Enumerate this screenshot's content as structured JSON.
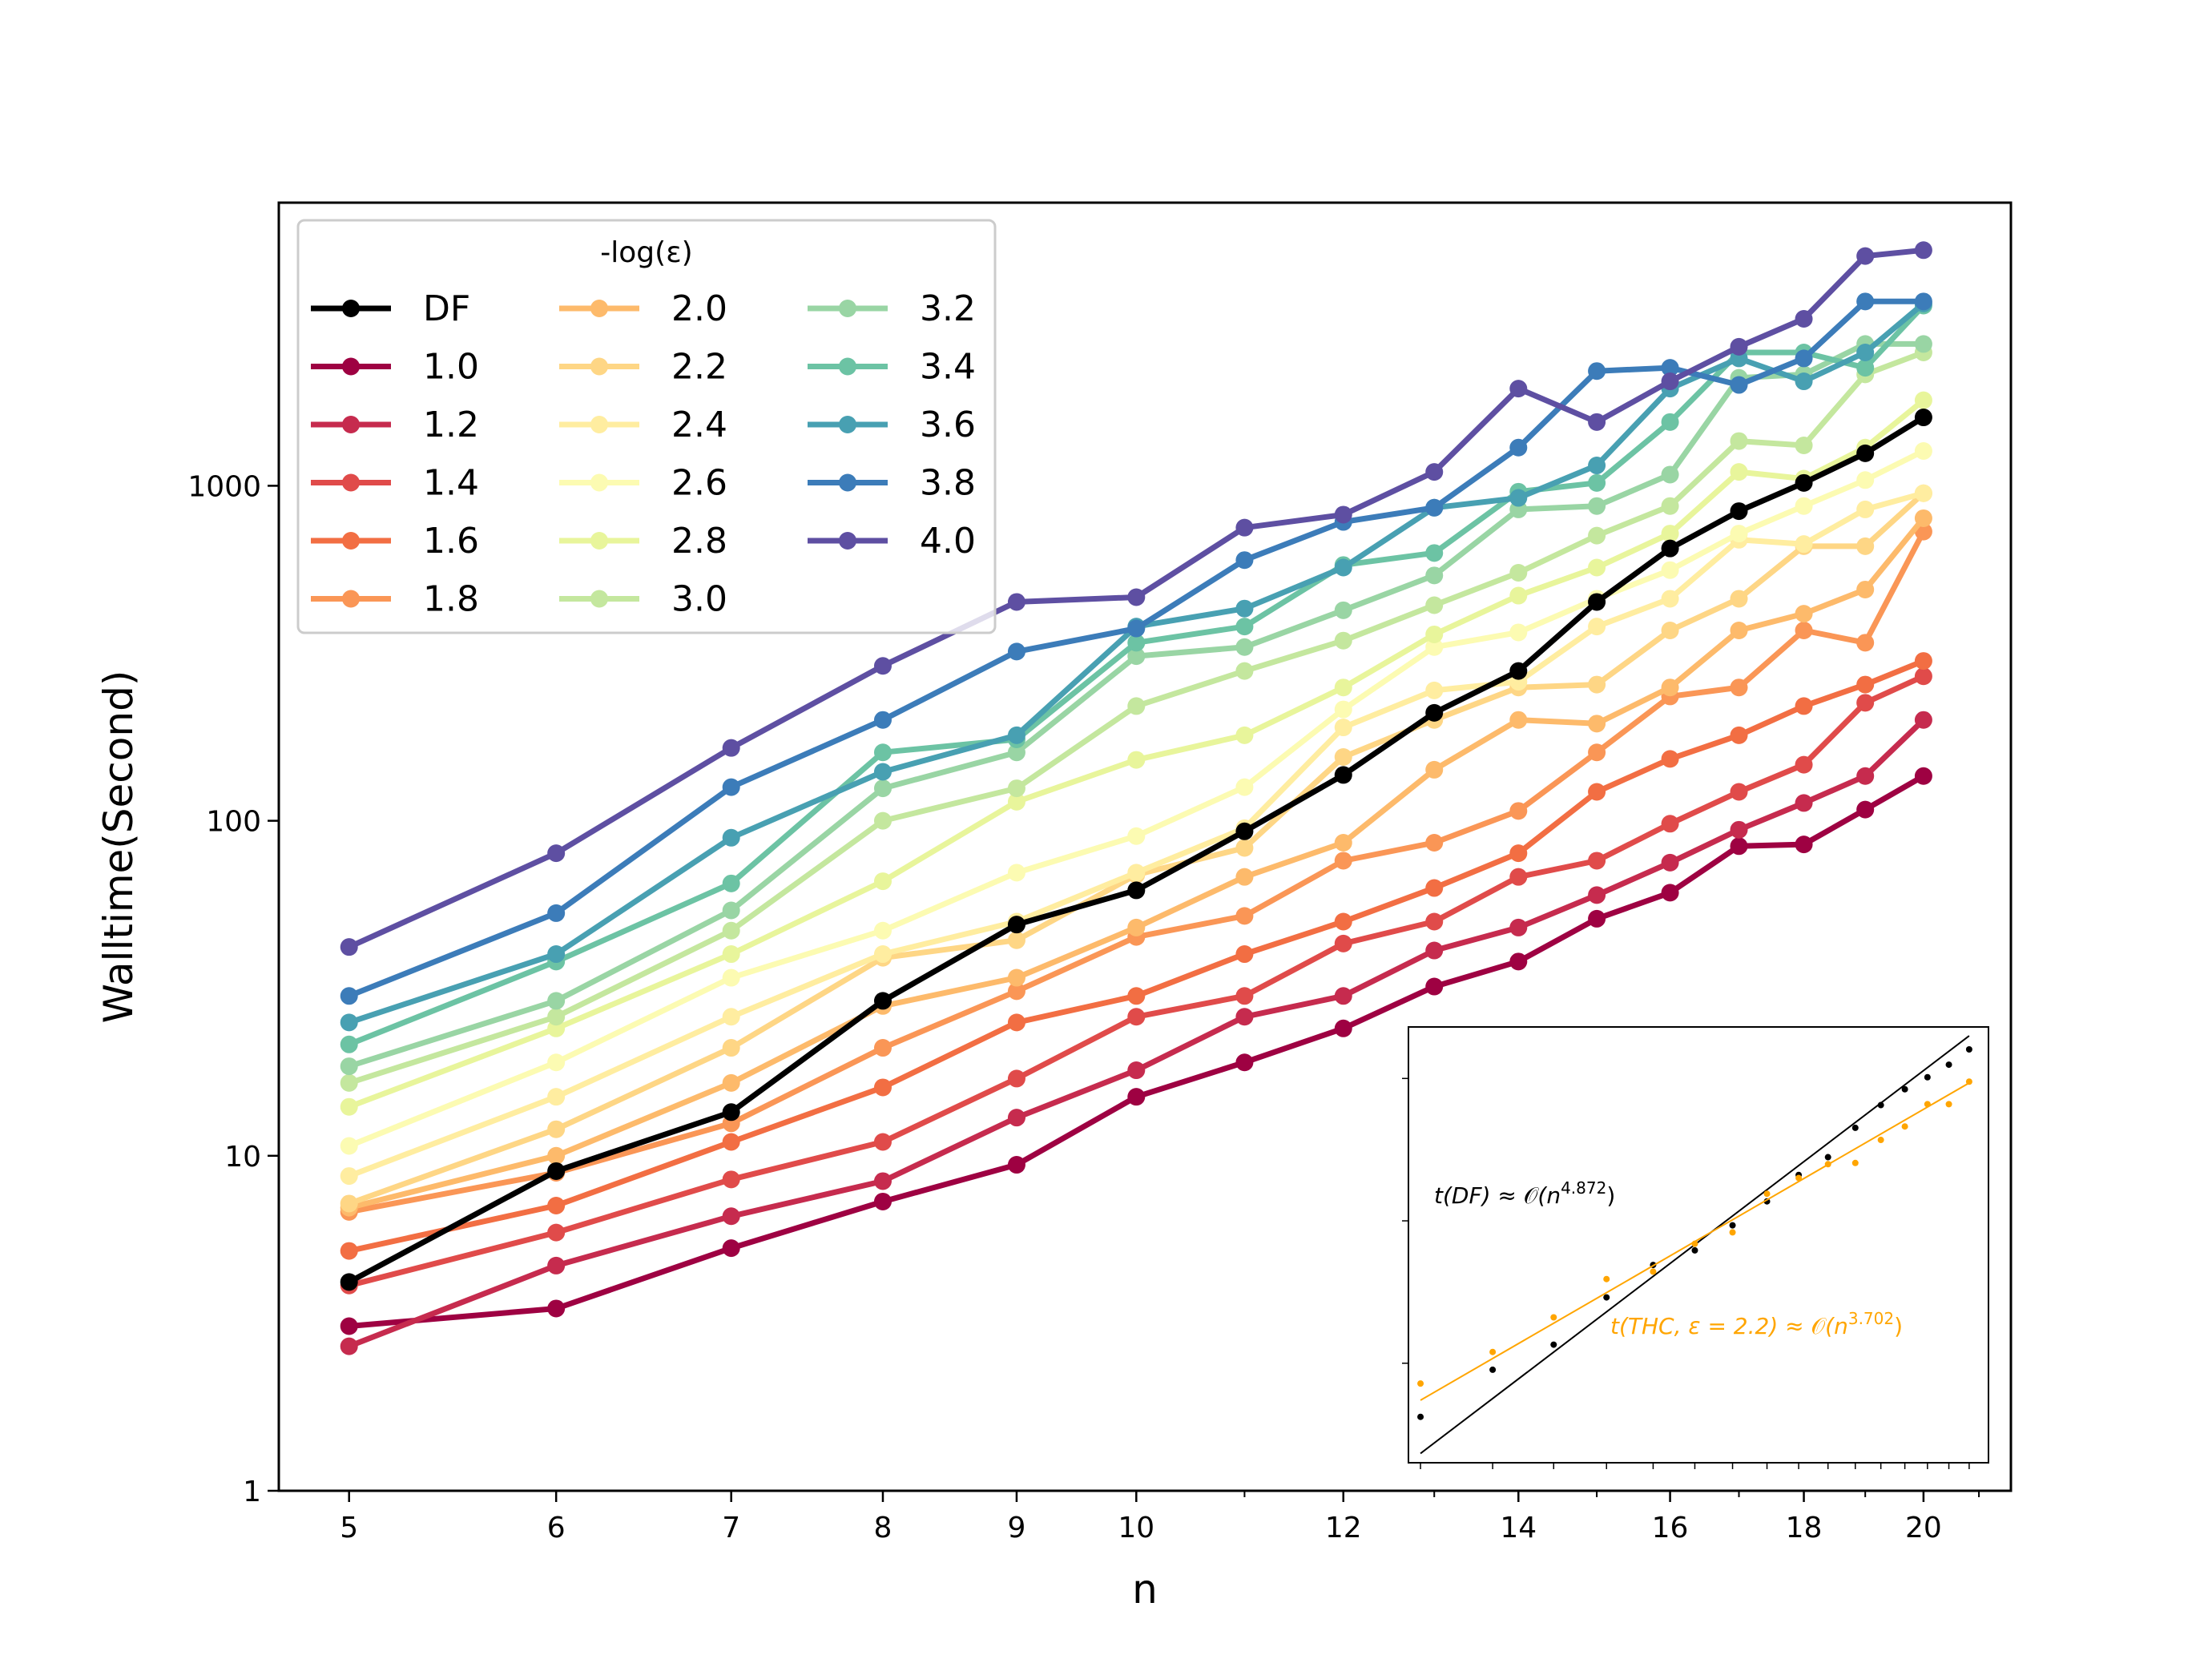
{
  "colors": {
    "DF": "#000000",
    "1.0": "#9e0142",
    "1.2": "#c62b4e",
    "1.4": "#e04b4a",
    "1.6": "#f26e43",
    "1.8": "#fa9656",
    "2.0": "#fdba6b",
    "2.2": "#fed685",
    "2.4": "#ffeda0",
    "2.6": "#fcfbb2",
    "2.8": "#e8f59b",
    "3.0": "#c4e79e",
    "3.2": "#99d5a4",
    "3.4": "#6cc3a4",
    "3.6": "#48a0b2",
    "3.8": "#3c7cb9",
    "4.0": "#5e4fa2",
    "inset_orange": "#ffa500"
  },
  "chart_data": [
    {
      "type": "line",
      "xscale": "log",
      "yscale": "log",
      "xlabel": "n",
      "ylabel": "Walltime(Second)",
      "xlim": [
        4.7,
        21.6
      ],
      "ylim": [
        1,
        7000
      ],
      "xticks": [
        5,
        6,
        7,
        8,
        9,
        10,
        12,
        14,
        16,
        18,
        20
      ],
      "yticks": [
        1,
        10,
        100,
        1000
      ],
      "ytick_labels": [
        "1",
        "10",
        "100",
        "1000"
      ],
      "legend": {
        "title": "-log(ε)",
        "placement": "upper left",
        "columns": 3
      },
      "series": [
        {
          "name": "DF",
          "x": [
            5,
            6,
            7,
            8,
            9,
            10,
            11,
            12,
            13,
            14,
            15,
            16,
            17,
            18,
            19,
            20
          ],
          "y": [
            4.2,
            9,
            13.5,
            29,
            49,
            62,
            93,
            137,
            210,
            280,
            450,
            650,
            840,
            1020,
            1250,
            1600
          ]
        },
        {
          "name": "1.0",
          "x": [
            5,
            6,
            7,
            8,
            9,
            10,
            11,
            12,
            13,
            14,
            15,
            16,
            17,
            18,
            19,
            20
          ],
          "y": [
            3.1,
            3.5,
            5.3,
            7.3,
            9.4,
            15,
            19,
            24,
            32,
            38,
            51,
            61,
            84,
            85,
            108,
            136
          ]
        },
        {
          "name": "1.2",
          "x": [
            5,
            6,
            7,
            8,
            9,
            10,
            11,
            12,
            13,
            14,
            15,
            16,
            17,
            18,
            19,
            20
          ],
          "y": [
            2.7,
            4.7,
            6.6,
            8.4,
            13,
            18,
            26,
            30,
            41,
            48,
            60,
            75,
            94,
            113,
            136,
            200
          ]
        },
        {
          "name": "1.4",
          "x": [
            5,
            6,
            7,
            8,
            9,
            10,
            11,
            12,
            13,
            14,
            15,
            16,
            17,
            18,
            19,
            20
          ],
          "y": [
            4.1,
            5.9,
            8.5,
            11,
            17,
            26,
            30,
            43,
            50,
            68,
            76,
            98,
            122,
            147,
            225,
            270
          ]
        },
        {
          "name": "1.6",
          "x": [
            5,
            6,
            7,
            8,
            9,
            10,
            11,
            12,
            13,
            14,
            15,
            16,
            17,
            18,
            19,
            20
          ],
          "y": [
            5.2,
            7.1,
            11,
            16,
            25,
            30,
            40,
            50,
            63,
            80,
            122,
            153,
            180,
            220,
            255,
            300
          ]
        },
        {
          "name": "1.8",
          "x": [
            5,
            6,
            7,
            8,
            9,
            10,
            11,
            12,
            13,
            14,
            15,
            16,
            17,
            18,
            19,
            20
          ],
          "y": [
            6.8,
            8.9,
            12.5,
            21,
            31,
            45,
            52,
            76,
            86,
            107,
            160,
            235,
            250,
            370,
            340,
            730
          ]
        },
        {
          "name": "2.0",
          "x": [
            5,
            6,
            7,
            8,
            9,
            10,
            11,
            12,
            13,
            14,
            15,
            16,
            17,
            18,
            19,
            20
          ],
          "y": [
            7,
            10,
            16.5,
            28,
            34,
            48,
            68,
            86,
            142,
            200,
            195,
            250,
            370,
            415,
            490,
            800
          ]
        },
        {
          "name": "2.2",
          "x": [
            5,
            6,
            7,
            8,
            9,
            10,
            11,
            12,
            13,
            14,
            15,
            16,
            17,
            18,
            19,
            20
          ],
          "y": [
            7.2,
            12,
            21,
            39,
            44,
            69,
            83,
            155,
            200,
            250,
            255,
            370,
            460,
            660,
            660,
            950
          ]
        },
        {
          "name": "2.4",
          "x": [
            5,
            6,
            7,
            8,
            9,
            10,
            11,
            12,
            13,
            14,
            15,
            16,
            17,
            18,
            19,
            20
          ],
          "y": [
            8.7,
            15,
            26,
            40,
            50,
            70,
            95,
            190,
            245,
            260,
            380,
            460,
            690,
            670,
            850,
            950
          ]
        },
        {
          "name": "2.6",
          "x": [
            5,
            6,
            7,
            8,
            9,
            10,
            11,
            12,
            13,
            14,
            15,
            16,
            17,
            18,
            19,
            20
          ],
          "y": [
            10.7,
            19,
            34,
            47,
            70,
            90,
            126,
            215,
            330,
            365,
            460,
            560,
            720,
            870,
            1040,
            1270
          ]
        },
        {
          "name": "2.8",
          "x": [
            5,
            6,
            7,
            8,
            9,
            10,
            11,
            12,
            13,
            14,
            15,
            16,
            17,
            18,
            19,
            20
          ],
          "y": [
            14,
            24,
            40,
            66,
            114,
            152,
            180,
            250,
            360,
            470,
            570,
            720,
            1100,
            1050,
            1300,
            1800
          ]
        },
        {
          "name": "3.0",
          "x": [
            5,
            6,
            7,
            8,
            9,
            10,
            11,
            12,
            13,
            14,
            15,
            16,
            17,
            18,
            19,
            20
          ],
          "y": [
            16.5,
            26,
            47,
            100,
            125,
            220,
            280,
            345,
            440,
            550,
            710,
            870,
            1360,
            1320,
            2150,
            2500
          ]
        },
        {
          "name": "3.2",
          "x": [
            5,
            6,
            7,
            8,
            9,
            10,
            11,
            12,
            13,
            14,
            15,
            16,
            17,
            18,
            19,
            20
          ],
          "y": [
            18.5,
            29,
            54,
            125,
            160,
            310,
            330,
            425,
            540,
            850,
            870,
            1080,
            2100,
            2150,
            2650,
            2650
          ]
        },
        {
          "name": "3.4",
          "x": [
            5,
            6,
            7,
            8,
            9,
            10,
            11,
            12,
            13,
            14,
            15,
            16,
            17,
            18,
            19,
            20
          ],
          "y": [
            21.5,
            38,
            65,
            160,
            175,
            340,
            380,
            580,
            630,
            960,
            1020,
            1550,
            2500,
            2500,
            2250,
            3450
          ]
        },
        {
          "name": "3.6",
          "x": [
            5,
            6,
            7,
            8,
            9,
            10,
            11,
            12,
            13,
            14,
            15,
            16,
            17,
            18,
            19,
            20
          ],
          "y": [
            25,
            40,
            89,
            140,
            180,
            380,
            430,
            570,
            860,
            920,
            1150,
            1950,
            2400,
            2050,
            2500,
            3500
          ]
        },
        {
          "name": "3.8",
          "x": [
            5,
            6,
            7,
            8,
            9,
            10,
            11,
            12,
            13,
            14,
            15,
            16,
            17,
            18,
            19,
            20
          ],
          "y": [
            30,
            53,
            126,
            200,
            320,
            375,
            600,
            780,
            860,
            1300,
            2200,
            2250,
            2000,
            2400,
            3550,
            3550
          ]
        },
        {
          "name": "4.0",
          "x": [
            5,
            6,
            7,
            8,
            9,
            10,
            11,
            12,
            13,
            14,
            15,
            16,
            17,
            18,
            19,
            20
          ],
          "y": [
            42,
            80,
            165,
            290,
            450,
            465,
            750,
            820,
            1100,
            1950,
            1550,
            2050,
            2600,
            3150,
            4850,
            5050
          ]
        }
      ]
    },
    {
      "type": "scatter",
      "xscale": "log",
      "yscale": "log",
      "annotations": [
        {
          "segments": [
            {
              "text": "t(DF) ≈ ",
              "style": "italic"
            },
            {
              "text": "𝒪",
              "style": "normal"
            },
            {
              "text": "(n",
              "style": "italic"
            },
            {
              "text": "4.872",
              "style": "sup"
            },
            {
              "text": ")",
              "style": "normal"
            }
          ],
          "color": "#000000"
        },
        {
          "segments": [
            {
              "text": "t(THC, ε = 2.2) ≈ ",
              "style": "italic"
            },
            {
              "text": "𝒪",
              "style": "normal"
            },
            {
              "text": "(n",
              "style": "italic"
            },
            {
              "text": "3.702",
              "style": "sup"
            },
            {
              "text": ")",
              "style": "normal"
            }
          ],
          "color": "#ffa500"
        }
      ],
      "series": [
        {
          "name": "DF",
          "x": [
            5,
            6,
            7,
            8,
            9,
            10,
            11,
            12,
            13,
            14,
            15,
            16,
            17,
            18,
            19,
            20
          ],
          "y": [
            4.2,
            9,
            13.5,
            29,
            49,
            62,
            93,
            137,
            210,
            280,
            450,
            650,
            840,
            1020,
            1250,
            1600
          ],
          "fit_exponent": 4.872
        },
        {
          "name": "2.2",
          "x": [
            5,
            6,
            7,
            8,
            9,
            10,
            11,
            12,
            13,
            14,
            15,
            16,
            17,
            18,
            19,
            20
          ],
          "y": [
            7.2,
            12,
            21,
            39,
            44,
            69,
            83,
            155,
            200,
            250,
            255,
            370,
            460,
            660,
            660,
            950
          ],
          "fit_exponent": 3.702
        }
      ]
    }
  ]
}
